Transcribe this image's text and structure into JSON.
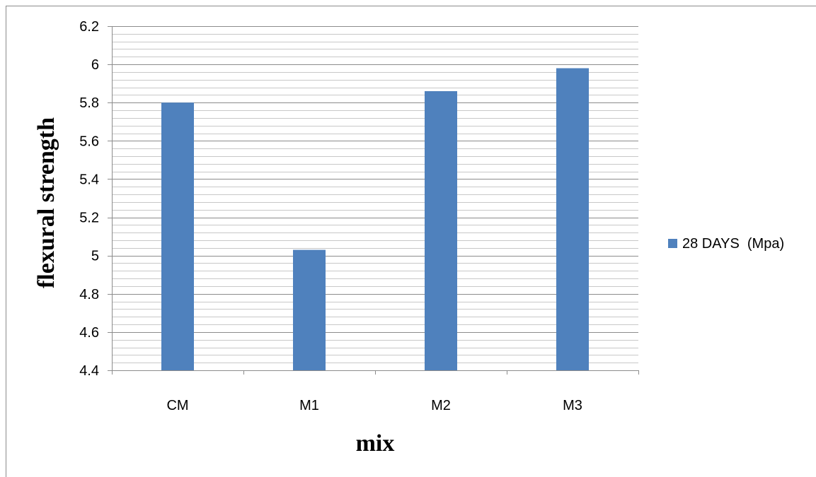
{
  "chart_data": {
    "type": "bar",
    "categories": [
      "CM",
      "M1",
      "M2",
      "M3"
    ],
    "series": [
      {
        "name": "28 DAYS  (Mpa)",
        "values": [
          5.8,
          5.03,
          5.86,
          5.98
        ],
        "color": "#4f81bd"
      }
    ],
    "xlabel": "mix",
    "ylabel": "flexural strength",
    "ylim": [
      4.4,
      6.2
    ],
    "yticks": [
      "4.4",
      "4.6",
      "4.8",
      "5",
      "5.2",
      "5.4",
      "5.6",
      "5.8",
      "6",
      "6.2"
    ],
    "grid": true,
    "legend_position": "right"
  }
}
